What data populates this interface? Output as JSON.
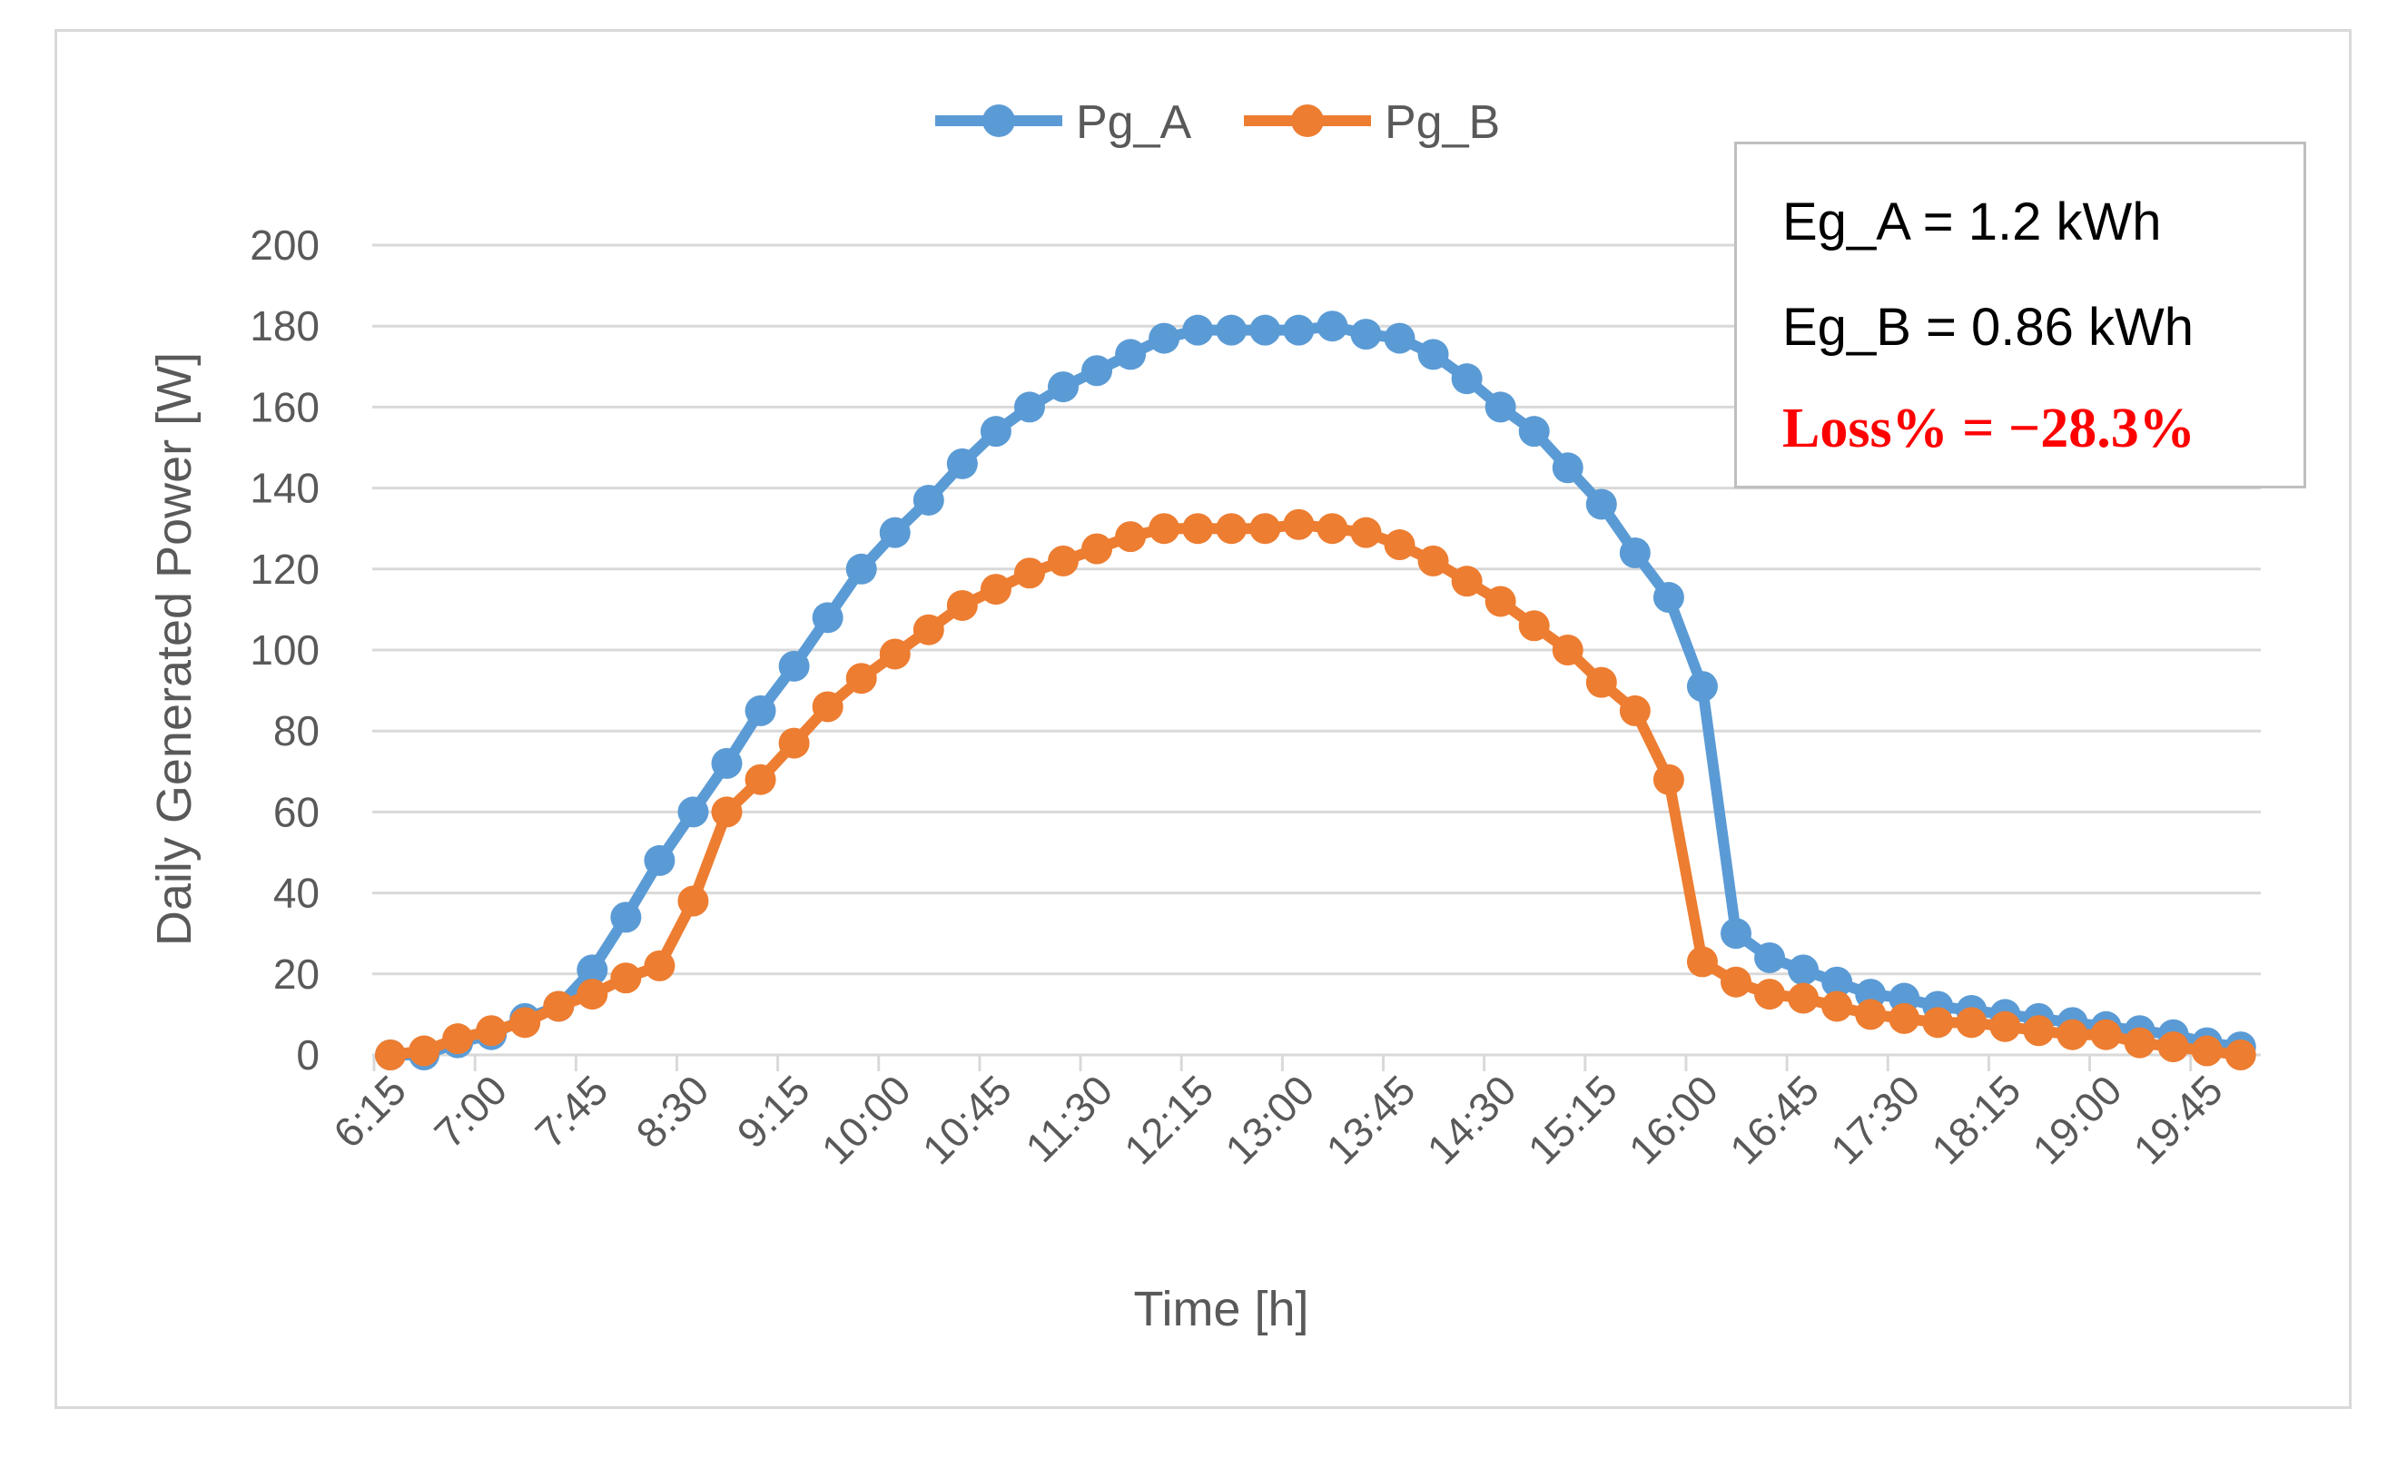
{
  "chart_data": {
    "type": "line",
    "title": "",
    "xlabel": "Time [h]",
    "ylabel": "Daily Generated Power [W]",
    "ylim": [
      0,
      200
    ],
    "yticks": [
      0,
      20,
      40,
      60,
      80,
      100,
      120,
      140,
      160,
      180,
      200
    ],
    "grid": true,
    "legend_position": "top-center",
    "x_tick_labels": [
      "6:15",
      "7:00",
      "7:45",
      "8:30",
      "9:15",
      "10:00",
      "10:45",
      "11:30",
      "12:15",
      "13:00",
      "13:45",
      "14:30",
      "15:15",
      "16:00",
      "16:45",
      "17:30",
      "18:15",
      "19:00",
      "19:45"
    ],
    "x": [
      "6:15",
      "6:30",
      "6:45",
      "7:00",
      "7:15",
      "7:30",
      "7:45",
      "8:00",
      "8:15",
      "8:30",
      "8:45",
      "9:00",
      "9:15",
      "9:30",
      "9:45",
      "10:00",
      "10:15",
      "10:30",
      "10:45",
      "11:00",
      "11:15",
      "11:30",
      "11:45",
      "12:00",
      "12:15",
      "12:30",
      "12:45",
      "13:00",
      "13:15",
      "13:30",
      "13:45",
      "14:00",
      "14:15",
      "14:30",
      "14:45",
      "15:00",
      "15:15",
      "15:30",
      "15:45",
      "16:00",
      "16:15",
      "16:30",
      "16:45",
      "17:00",
      "17:15",
      "17:30",
      "17:45",
      "18:00",
      "18:15",
      "18:30",
      "18:45",
      "19:00",
      "19:15",
      "19:30",
      "19:45",
      "20:00"
    ],
    "series": [
      {
        "name": "Pg_A",
        "color": "#5b9bd5",
        "values": [
          0,
          0,
          3,
          5,
          9,
          12,
          21,
          34,
          48,
          60,
          72,
          85,
          96,
          108,
          120,
          129,
          137,
          146,
          154,
          160,
          165,
          169,
          173,
          177,
          179,
          179,
          179,
          179,
          180,
          178,
          177,
          173,
          167,
          160,
          154,
          145,
          136,
          124,
          113,
          91,
          30,
          24,
          21,
          18,
          15,
          14,
          12,
          11,
          10,
          9,
          8,
          7,
          6,
          5,
          3,
          2
        ]
      },
      {
        "name": "Pg_B",
        "color": "#ed7d31",
        "values": [
          0,
          1,
          4,
          6,
          8,
          12,
          15,
          19,
          22,
          38,
          60,
          68,
          77,
          86,
          93,
          99,
          105,
          111,
          115,
          119,
          122,
          125,
          128,
          130,
          130,
          130,
          130,
          131,
          130,
          129,
          126,
          122,
          117,
          112,
          106,
          100,
          92,
          85,
          68,
          23,
          18,
          15,
          14,
          12,
          10,
          9,
          8,
          8,
          7,
          6,
          5,
          5,
          3,
          2,
          1,
          0
        ]
      }
    ],
    "annotations": {
      "eg_a": "Eg_A = 1.2 kWh",
      "eg_b": "Eg_B = 0.86 kWh",
      "loss": "Loss% = −28.3%",
      "loss_color": "#ff0000"
    }
  }
}
